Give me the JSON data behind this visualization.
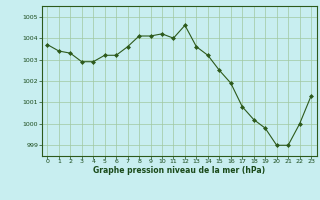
{
  "x": [
    0,
    1,
    2,
    3,
    4,
    5,
    6,
    7,
    8,
    9,
    10,
    11,
    12,
    13,
    14,
    15,
    16,
    17,
    18,
    19,
    20,
    21,
    22,
    23
  ],
  "y": [
    1003.7,
    1003.4,
    1003.3,
    1002.9,
    1002.9,
    1003.2,
    1003.2,
    1003.6,
    1004.1,
    1004.1,
    1004.2,
    1004.0,
    1004.6,
    1003.6,
    1003.2,
    1002.5,
    1001.9,
    1000.8,
    1000.2,
    999.8,
    999.0,
    999.0,
    1000.0,
    1001.3
  ],
  "line_color": "#2d5a1b",
  "marker_color": "#2d5a1b",
  "bg_color": "#c8eef0",
  "grid_color": "#a0c8a0",
  "xlabel": "Graphe pression niveau de la mer (hPa)",
  "xlabel_color": "#1a4a1a",
  "tick_color": "#1a4a1a",
  "label_color": "#1a4a1a",
  "ylim": [
    998.5,
    1005.5
  ],
  "yticks": [
    999,
    1000,
    1001,
    1002,
    1003,
    1004,
    1005
  ],
  "xticks": [
    0,
    1,
    2,
    3,
    4,
    5,
    6,
    7,
    8,
    9,
    10,
    11,
    12,
    13,
    14,
    15,
    16,
    17,
    18,
    19,
    20,
    21,
    22,
    23
  ],
  "figsize": [
    3.2,
    2.0
  ],
  "dpi": 100
}
